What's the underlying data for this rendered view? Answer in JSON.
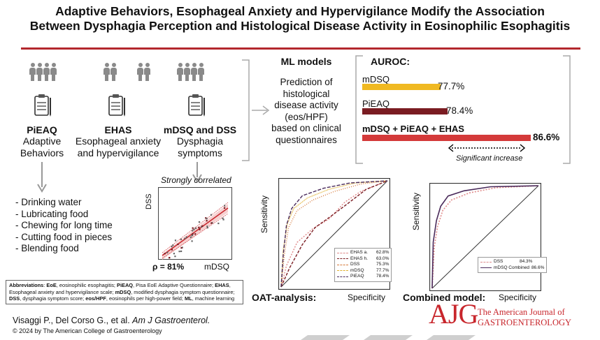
{
  "title": {
    "line1": "Adaptive Behaviors, Esophageal Anxiety and Hypervigilance Modify the Association",
    "line2": "Between Dysphagia Perception and Histological Disease Activity in Eosinophilic Esophagitis"
  },
  "columns": [
    {
      "heading": "PiEAQ",
      "line1": "Adaptive",
      "line2": "Behaviors"
    },
    {
      "heading": "EHAS",
      "line1": "Esophageal anxiety",
      "line2": "and hypervigilance"
    },
    {
      "heading": "mDSQ and DSS",
      "line1": "Dysphagia",
      "line2": "symptoms"
    }
  ],
  "behaviors": [
    "- Drinking water",
    "- Lubricating food",
    "- Chewing for long time",
    "- Cutting food in pieces",
    "- Blending food"
  ],
  "correlation": {
    "label": "Strongly correlated",
    "ylabel": "DSS",
    "xlabel": "mDSQ",
    "rho": "ρ = 81%"
  },
  "ml": {
    "heading": "ML models",
    "lines": [
      "Prediction of",
      "histological",
      "disease activity",
      "(eos/HPF)",
      "based on clinical",
      "questionnaires"
    ]
  },
  "auroc": {
    "heading": "AUROC:",
    "bars": [
      {
        "label": "mDSQ",
        "value": 77.7,
        "text": "77.7%",
        "color": "#f0b922"
      },
      {
        "label": "PiEAQ",
        "value": 78.4,
        "text": "78.4%",
        "color": "#7a1c22"
      },
      {
        "label": "mDSQ + PiEAQ + EHAS",
        "value": 86.6,
        "text": "86.6%",
        "color": "#d43a3a"
      }
    ],
    "significant": "Significant increase"
  },
  "oat_chart": {
    "ylabel": "Sensitivity",
    "xlabel": "Specificity",
    "caption": "OAT-analysis:",
    "legend": [
      {
        "name": "EHAS a.",
        "value": "62.8%",
        "color": "#e08a8a",
        "dash": "2,2"
      },
      {
        "name": "EHAS h.",
        "value": "63.0%",
        "color": "#7a1c22",
        "dash": "4,2"
      },
      {
        "name": "DSS",
        "value": "75.3%",
        "color": "#d67a3a",
        "dash": "1,2"
      },
      {
        "name": "mDSQ",
        "value": "77.7%",
        "color": "#e0b030",
        "dash": "1,1"
      },
      {
        "name": "PiEAQ",
        "value": "78.4%",
        "color": "#4a2a5a",
        "dash": "5,2"
      }
    ]
  },
  "combined_chart": {
    "ylabel": "Sensitivity",
    "xlabel": "Specificity",
    "caption": "Combined model:",
    "legend": [
      {
        "name": "DSS",
        "value": "84.3%",
        "color": "#e08a8a",
        "dash": "2,2"
      },
      {
        "name": "mDSQ Combined",
        "value": "86.6%",
        "color": "#4a2a5a",
        "dash": ""
      }
    ]
  },
  "abbreviations": {
    "items": [
      {
        "term": "Abbreviations",
        "def": ": "
      },
      {
        "term": "EoE",
        "def": ", eosinophilic esophagitis; "
      },
      {
        "term": "PiEAQ",
        "def": ", Pisa EoE Adaptive Questionnaire; "
      },
      {
        "term": "EHAS",
        "def": ", Esophageal anxiety and hypervigilance scale; "
      },
      {
        "term": "mDSQ",
        "def": ", modified dysphagia symptom questionnaire; "
      },
      {
        "term": "DSS",
        "def": ", dysphagia symptom score;  "
      },
      {
        "term": "eos/HPF",
        "def": ", eosinophils per high-power field; "
      },
      {
        "term": "ML",
        "def": ", machine learning"
      }
    ]
  },
  "citation": {
    "authors": "Visaggi P., Del Corso G., et al. ",
    "journal": "Am J Gastroenterol.",
    "copyright": "© 2024 by The American College of Gastroenterology"
  },
  "logo": {
    "mark": "AJG",
    "line1": "The American Journal of",
    "line2": "GASTROENTEROLOGY",
    "color": "#c8262c"
  }
}
